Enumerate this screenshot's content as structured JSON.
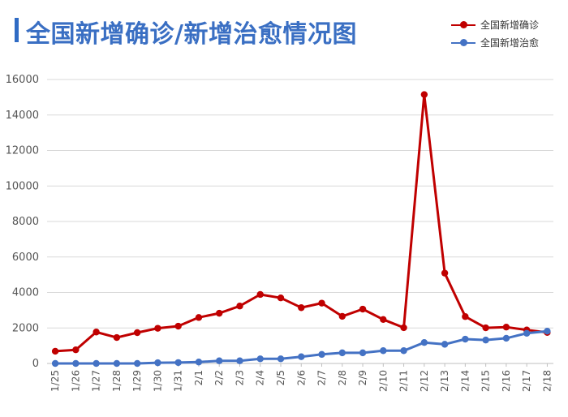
{
  "title": "全国新增确诊/新增治愈情况图",
  "colors": {
    "confirmed": "#c00000",
    "cured": "#4472c4",
    "title": "#3a6fc3",
    "grid": "#d9d9d9"
  },
  "chart_data": {
    "type": "line",
    "title": "全国新增确诊/新增治愈情况图",
    "xlabel": "",
    "ylabel": "",
    "ylim": [
      0,
      16000
    ],
    "yticks": [
      0,
      2000,
      4000,
      6000,
      8000,
      10000,
      12000,
      14000,
      16000
    ],
    "grid": "horizontal",
    "legend": "top-right",
    "categories": [
      "1/25",
      "1/26",
      "1/27",
      "1/28",
      "1/29",
      "1/30",
      "1/31",
      "2/1",
      "2/2",
      "2/3",
      "2/4",
      "2/5",
      "2/6",
      "2/7",
      "2/8",
      "2/9",
      "2/10",
      "2/11",
      "2/12",
      "2/13",
      "2/14",
      "2/15",
      "2/16",
      "2/17",
      "2/18"
    ],
    "series": [
      {
        "name": "全国新增确诊",
        "color": "#c00000",
        "values": [
          688,
          769,
          1771,
          1459,
          1737,
          1982,
          2102,
          2590,
          2829,
          3235,
          3887,
          3694,
          3143,
          3399,
          2656,
          3062,
          2478,
          2015,
          15152,
          5090,
          2641,
          2009,
          2048,
          1886,
          1749
        ]
      },
      {
        "name": "全国新增治愈",
        "color": "#4472c4",
        "values": [
          0,
          0,
          0,
          0,
          0,
          40,
          50,
          80,
          150,
          150,
          260,
          260,
          380,
          510,
          600,
          600,
          720,
          720,
          1180,
          1080,
          1370,
          1320,
          1420,
          1700,
          1820
        ]
      }
    ]
  }
}
